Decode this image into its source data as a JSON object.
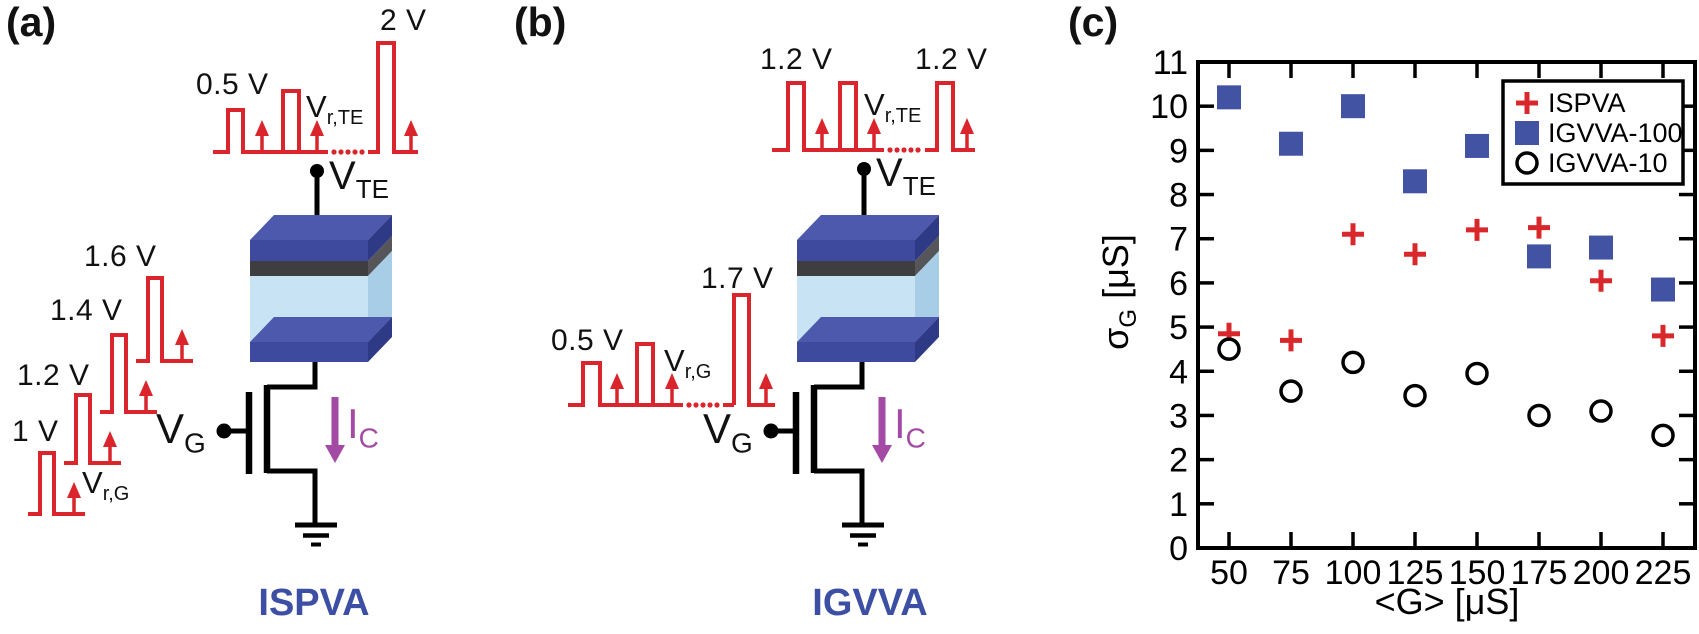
{
  "panel_a": {
    "label": "(a)",
    "method_title": "ISPVA",
    "top_pulses": {
      "start_label": "0.5 V",
      "peak_label": "2 V",
      "read_label": {
        "base": "V",
        "sub": "r,TE"
      }
    },
    "top_node": {
      "base": "V",
      "sub": "TE"
    },
    "gate_pulses": {
      "labels": [
        "1 V",
        "1.2 V",
        "1.4 V",
        "1.6 V"
      ],
      "read_label": {
        "base": "V",
        "sub": "r,G"
      }
    },
    "gate_node": {
      "base": "V",
      "sub": "G"
    },
    "cell_current": {
      "base": "I",
      "sub": "C"
    }
  },
  "panel_b": {
    "label": "(b)",
    "method_title": "IGVVA",
    "top_pulses": {
      "start_label": "1.2 V",
      "end_label": "1.2 V",
      "read_label": {
        "base": "V",
        "sub": "r,TE"
      }
    },
    "top_node": {
      "base": "V",
      "sub": "TE"
    },
    "gate_pulses": {
      "start_label": "0.5 V",
      "peak_label": "1.7 V",
      "read_label": {
        "base": "V",
        "sub": "r,G"
      }
    },
    "gate_node": {
      "base": "V",
      "sub": "G"
    },
    "cell_current": {
      "base": "I",
      "sub": "C"
    }
  },
  "panel_c": {
    "label": "(c)",
    "ylabel": {
      "base": "σ",
      "sub": "G",
      "unit": " [μS]"
    },
    "xlabel": "<G> [μS]"
  },
  "chart_data": {
    "type": "scatter",
    "x": [
      50,
      75,
      100,
      125,
      150,
      175,
      200,
      225
    ],
    "series": [
      {
        "name": "ISPVA",
        "marker": "plus",
        "color": "#d8282c",
        "values": [
          4.85,
          4.7,
          7.1,
          6.65,
          7.2,
          7.25,
          6.05,
          4.8
        ]
      },
      {
        "name": "IGVVA-100",
        "marker": "square",
        "color": "#4353a4",
        "values": [
          10.2,
          9.15,
          10.0,
          8.3,
          9.1,
          6.6,
          6.8,
          5.85
        ]
      },
      {
        "name": "IGVVA-10",
        "marker": "circle",
        "color": "#000000",
        "values": [
          4.5,
          3.55,
          4.2,
          3.45,
          3.95,
          3.0,
          3.1,
          2.55
        ]
      }
    ],
    "xlabel": "<G> [μS]",
    "ylabel": "σG [μS]",
    "ylim": [
      0,
      11
    ],
    "yticks": [
      0,
      1,
      2,
      3,
      4,
      5,
      6,
      7,
      8,
      9,
      10,
      11
    ],
    "grid": false,
    "legend_position": "top-right"
  },
  "colors": {
    "pulse_red": "#d9252b",
    "electrode_top_face": "#4d59ad",
    "electrode_front_face": "#3e4a9d",
    "electrode_side_face": "#2e3a86",
    "interlayer_front": "#3e3e40",
    "interlayer_side": "#55555a",
    "oxide_front": "#c8e3f4",
    "oxide_side": "#a8cde7",
    "current_purple": "#a24aa4",
    "method_title_blue": "#3d4fa4",
    "marker_red": "#d8282c",
    "marker_blue": "#4353a4",
    "marker_black": "#000000"
  }
}
